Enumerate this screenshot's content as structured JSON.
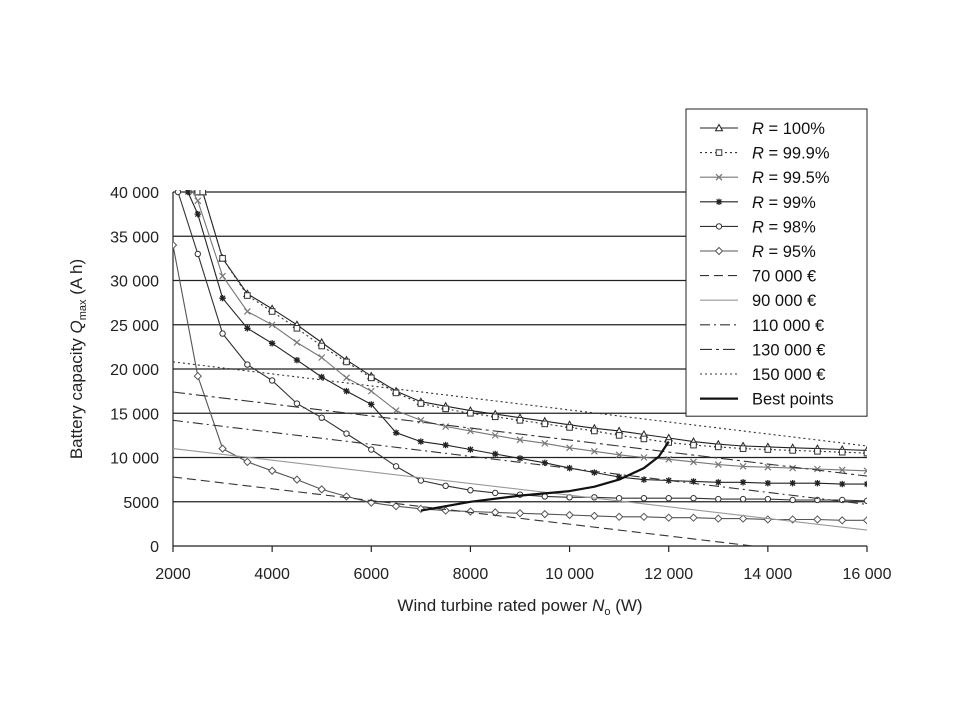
{
  "chart_data": {
    "type": "line",
    "xlabel": "Wind turbine rated power",
    "xlabel_symbol": "N",
    "xlabel_sub": "o",
    "xlabel_unit": "(W)",
    "ylabel": "Battery capacity",
    "ylabel_symbol": "Q",
    "ylabel_sub": "max",
    "ylabel_unit": "(A h)",
    "xlim": [
      2000,
      16000
    ],
    "ylim": [
      0,
      40000
    ],
    "xticks": [
      2000,
      4000,
      6000,
      8000,
      10000,
      12000,
      14000,
      16000
    ],
    "xtick_labels": [
      "2000",
      "4000",
      "6000",
      "8000",
      "10 000",
      "12 000",
      "14 000",
      "16 000"
    ],
    "yticks": [
      0,
      5000,
      10000,
      15000,
      20000,
      25000,
      30000,
      35000,
      40000
    ],
    "ytick_labels": [
      "0",
      "5000",
      "10 000",
      "15 000",
      "20 000",
      "25 000",
      "30 000",
      "35 000",
      "40 000"
    ],
    "grid": "horizontal",
    "legend_position": "top-right",
    "series": [
      {
        "name": "R = 100%",
        "prefix": "R",
        "suffix": " = 100%",
        "marker": "triangle",
        "color": "#222222",
        "dash": "",
        "x": [
          2500,
          2600,
          3000,
          3500,
          4000,
          4500,
          5000,
          5500,
          6000,
          6500,
          7000,
          7500,
          8000,
          8500,
          9000,
          9500,
          10000,
          10500,
          11000,
          11500,
          12000,
          12500,
          13000,
          13500,
          14000,
          14500,
          15000,
          15500,
          16000
        ],
        "y": [
          40000,
          40000,
          32500,
          28500,
          26800,
          25000,
          23000,
          21000,
          19200,
          17500,
          16300,
          15800,
          15300,
          14900,
          14500,
          14100,
          13700,
          13300,
          13000,
          12600,
          12200,
          11800,
          11500,
          11300,
          11200,
          11100,
          11000,
          10900,
          10800
        ]
      },
      {
        "name": "R = 99.9%",
        "prefix": "R",
        "suffix": " = 99.9%",
        "marker": "square",
        "color": "#333333",
        "dash": "2,3",
        "x": [
          2500,
          2600,
          3000,
          3500,
          4000,
          4500,
          5000,
          5500,
          6000,
          6500,
          7000,
          7500,
          8000,
          8500,
          9000,
          9500,
          10000,
          10500,
          11000,
          11500,
          12000,
          12500,
          13000,
          13500,
          14000,
          14500,
          15000,
          15500,
          16000
        ],
        "y": [
          40000,
          40000,
          32500,
          28300,
          26500,
          24600,
          22600,
          20800,
          19000,
          17300,
          16100,
          15500,
          15000,
          14600,
          14200,
          13800,
          13400,
          13000,
          12500,
          12100,
          11700,
          11400,
          11200,
          11000,
          10900,
          10800,
          10700,
          10600,
          10500
        ]
      },
      {
        "name": "R = 99.5%",
        "prefix": "R",
        "suffix": " = 99.5%",
        "marker": "x",
        "color": "#777777",
        "dash": "",
        "x": [
          2400,
          2500,
          3000,
          3500,
          4000,
          4500,
          5000,
          5500,
          6000,
          6500,
          7000,
          7500,
          8000,
          8500,
          9000,
          9500,
          10000,
          10500,
          11000,
          11500,
          12000,
          12500,
          13000,
          13500,
          14000,
          14500,
          15000,
          15500,
          16000
        ],
        "y": [
          40000,
          39000,
          30500,
          26500,
          25000,
          23000,
          21300,
          19000,
          17500,
          15300,
          14200,
          13500,
          13000,
          12500,
          12000,
          11600,
          11100,
          10700,
          10300,
          10000,
          9800,
          9500,
          9200,
          9000,
          8900,
          8800,
          8700,
          8600,
          8500
        ]
      },
      {
        "name": "R = 99%",
        "prefix": "R",
        "suffix": " = 99%",
        "marker": "star",
        "color": "#222222",
        "dash": "",
        "x": [
          2300,
          2500,
          3000,
          3500,
          4000,
          4500,
          5000,
          5500,
          6000,
          6500,
          7000,
          7500,
          8000,
          8500,
          9000,
          9500,
          10000,
          10500,
          11000,
          11500,
          12000,
          12500,
          13000,
          13500,
          14000,
          14500,
          15000,
          15500,
          16000
        ],
        "y": [
          40000,
          37500,
          28000,
          24600,
          22900,
          21000,
          19100,
          17500,
          16000,
          12800,
          11800,
          11400,
          10900,
          10400,
          9900,
          9400,
          8800,
          8300,
          7800,
          7500,
          7400,
          7300,
          7200,
          7200,
          7100,
          7100,
          7100,
          7000,
          7000
        ]
      },
      {
        "name": "R = 98%",
        "prefix": "R",
        "suffix": " = 98%",
        "marker": "circle",
        "color": "#333333",
        "dash": "",
        "x": [
          2100,
          2500,
          3000,
          3500,
          4000,
          4500,
          5000,
          5500,
          6000,
          6500,
          7000,
          7500,
          8000,
          8500,
          9000,
          9500,
          10000,
          10500,
          11000,
          11500,
          12000,
          12500,
          13000,
          13500,
          14000,
          14500,
          15000,
          15500,
          16000
        ],
        "y": [
          40000,
          33000,
          24000,
          20500,
          18700,
          16100,
          14500,
          12700,
          10900,
          9000,
          7400,
          6800,
          6300,
          6000,
          5800,
          5600,
          5500,
          5500,
          5400,
          5400,
          5400,
          5400,
          5300,
          5300,
          5300,
          5200,
          5200,
          5200,
          5100
        ]
      },
      {
        "name": "R = 95%",
        "prefix": "R",
        "suffix": " = 95%",
        "marker": "diamond",
        "color": "#555555",
        "dash": "",
        "x": [
          2000,
          2500,
          3000,
          3500,
          4000,
          4500,
          5000,
          5500,
          6000,
          6500,
          7000,
          7500,
          8000,
          8500,
          9000,
          9500,
          10000,
          10500,
          11000,
          11500,
          12000,
          12500,
          13000,
          13500,
          14000,
          14500,
          15000,
          15500,
          16000
        ],
        "y": [
          34000,
          19200,
          11000,
          9500,
          8500,
          7500,
          6400,
          5600,
          4900,
          4500,
          4200,
          4000,
          3900,
          3800,
          3700,
          3600,
          3500,
          3400,
          3300,
          3300,
          3200,
          3200,
          3100,
          3100,
          3000,
          3000,
          3000,
          2900,
          2900
        ]
      },
      {
        "name": "70 000 €",
        "label": "70 000 €",
        "marker": "none",
        "color": "#333333",
        "dash": "9,5",
        "x": [
          2000,
          14000
        ],
        "y": [
          7800,
          -200
        ]
      },
      {
        "name": "90 000 €",
        "label": "90 000 €",
        "marker": "none",
        "color": "#999999",
        "dash": "",
        "x": [
          2000,
          16000
        ],
        "y": [
          11000,
          1800
        ]
      },
      {
        "name": "110 000 €",
        "label": "110 000 €",
        "marker": "none",
        "color": "#333333",
        "dash": "10,4,2,4",
        "x": [
          2000,
          16000
        ],
        "y": [
          14200,
          4700
        ]
      },
      {
        "name": "130 000 €",
        "label": "130 000 €",
        "marker": "none",
        "color": "#333333",
        "dash": "12,4,3,4",
        "x": [
          2000,
          16000
        ],
        "y": [
          17400,
          7900
        ]
      },
      {
        "name": "150 000 €",
        "label": "150 000 €",
        "marker": "none",
        "color": "#333333",
        "dash": "2,3",
        "x": [
          2000,
          16000
        ],
        "y": [
          20800,
          11300
        ]
      },
      {
        "name": "Best points",
        "label": "Best points",
        "marker": "none",
        "color": "#111111",
        "dash": "",
        "width": 2.2,
        "x": [
          7000,
          8000,
          9000,
          10000,
          10500,
          11000,
          11500,
          11800,
          12000
        ],
        "y": [
          4000,
          5000,
          5700,
          6200,
          6700,
          7500,
          8800,
          10100,
          11800
        ]
      }
    ]
  }
}
